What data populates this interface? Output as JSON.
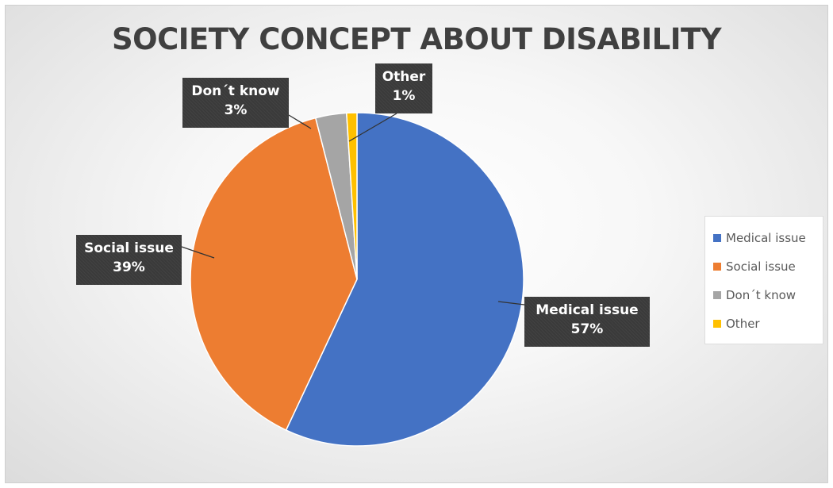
{
  "chart_data": {
    "type": "pie",
    "title": "SOCIETY CONCEPT ABOUT DISABILITY",
    "categories": [
      "Medical issue",
      "Social issue",
      "Don´t know",
      "Other"
    ],
    "values": [
      57,
      39,
      3,
      1
    ],
    "unit": "%",
    "colors": [
      "#4472c4",
      "#ed7d31",
      "#a5a5a5",
      "#ffc000"
    ],
    "data_labels": [
      {
        "name": "Medical issue",
        "value": "57%"
      },
      {
        "name": "Social issue",
        "value": "39%"
      },
      {
        "name": "Don´t know",
        "value": "3%"
      },
      {
        "name": "Other",
        "value": "1%"
      }
    ],
    "legend": {
      "position": "right",
      "entries": [
        "Medical issue",
        "Social issue",
        "Don´t know",
        "Other"
      ]
    }
  }
}
